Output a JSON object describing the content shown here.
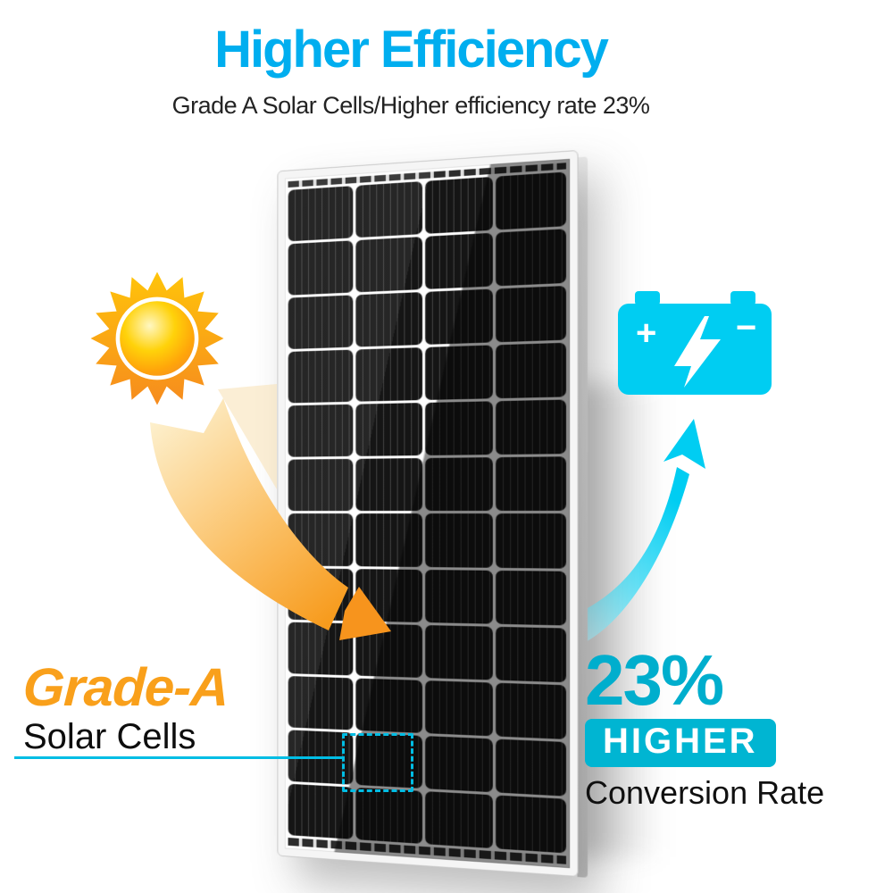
{
  "header": {
    "title": "Higher Efficiency",
    "subtitle": "Grade A Solar Cells/Higher efficiency rate 23%"
  },
  "left_callout": {
    "heading": "Grade-A",
    "subheading": "Solar Cells"
  },
  "right_callout": {
    "percent": "23%",
    "badge": "HIGHER",
    "caption": "Conversion Rate"
  },
  "battery": {
    "plus_label": "+",
    "minus_label": "−"
  },
  "panel": {
    "rows": 12,
    "cols": 4
  },
  "icons": {
    "sun": "sun-icon",
    "sun_arrow": "sun-to-panel-arrow-icon",
    "battery": "battery-icon",
    "lightning": "lightning-bolt-icon",
    "battery_arrow": "panel-to-battery-arrow-icon",
    "highlight": "cell-highlight-box"
  },
  "colors": {
    "title_blue": "#00aeef",
    "text_dark": "#232323",
    "orange": "#f9a01b",
    "arrow_orange": "#f7941d",
    "cyan_bright": "#00cdf2",
    "teal": "#00aecd",
    "badge_cyan": "#00b5d2",
    "highlight_cyan": "#00bde4"
  }
}
